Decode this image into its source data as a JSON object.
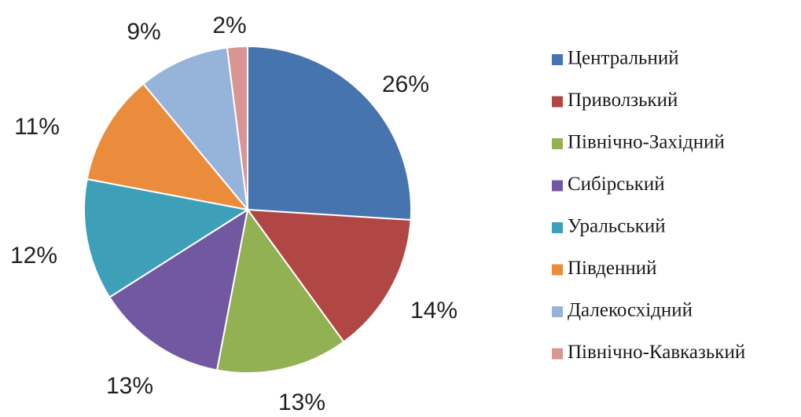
{
  "chart_data": {
    "type": "pie",
    "start_angle_deg": 0,
    "direction": "clockwise",
    "legend_position": "right",
    "slices": [
      {
        "label": "Центральний",
        "value": 26,
        "display": "26%",
        "color": "#4674AE"
      },
      {
        "label": "Приволзький",
        "value": 14,
        "display": "14%",
        "color": "#B14744"
      },
      {
        "label": "Північно-Західний",
        "value": 13,
        "display": "13%",
        "color": "#92B152"
      },
      {
        "label": "Сибірський",
        "value": 13,
        "display": "13%",
        "color": "#7158A1"
      },
      {
        "label": "Уральський",
        "value": 12,
        "display": "12%",
        "color": "#3EA0B8"
      },
      {
        "label": "Південний",
        "value": 11,
        "display": "11%",
        "color": "#EB8C3C"
      },
      {
        "label": "Далекосхідний",
        "value": 9,
        "display": "9%",
        "color": "#96B3DA"
      },
      {
        "label": "Північно-Кавказький",
        "value": 2,
        "display": "2%",
        "color": "#D99594"
      }
    ]
  }
}
